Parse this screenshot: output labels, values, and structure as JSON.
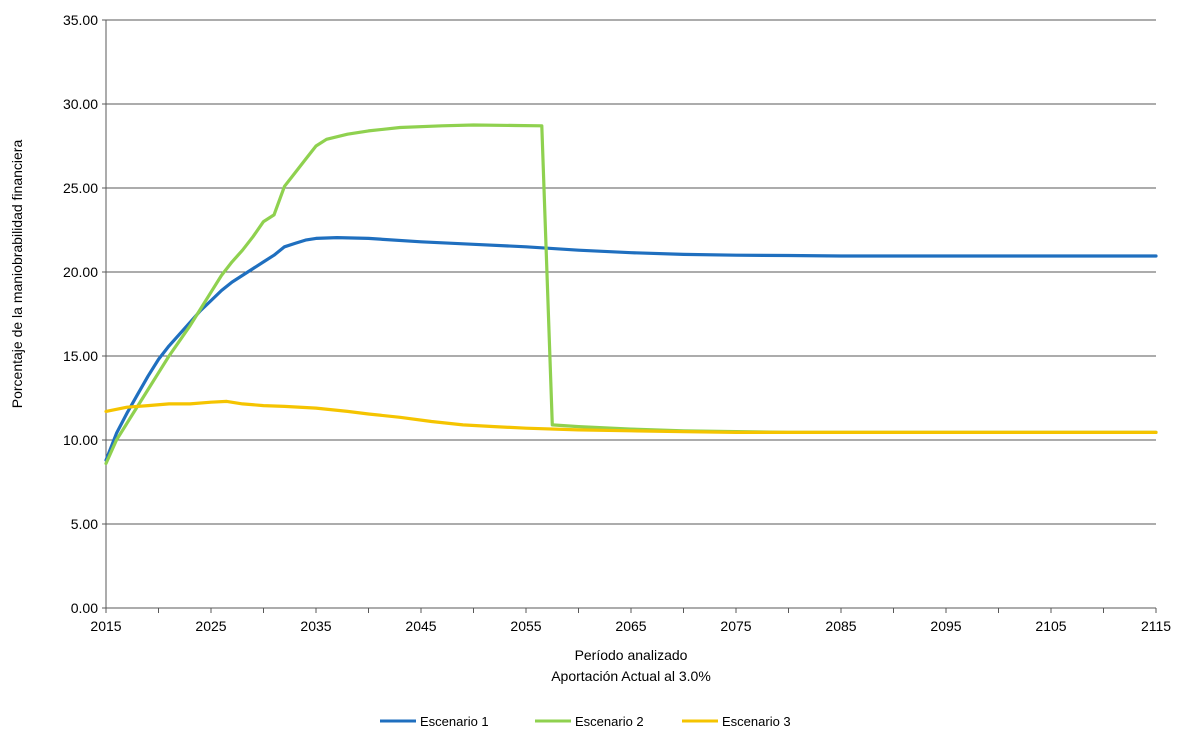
{
  "chart_data": {
    "type": "line",
    "title": "",
    "xlabel": "Período analizado",
    "xlabel2": "Aportación Actual al 3.0%",
    "ylabel": "Porcentaje de la maniobrabilidad financiera",
    "xlim": [
      2015,
      2115
    ],
    "ylim": [
      0,
      35
    ],
    "xticks": [
      "2015",
      "2025",
      "2035",
      "2045",
      "2055",
      "2065",
      "2075",
      "2085",
      "2095",
      "2105",
      "2115"
    ],
    "yticks": [
      "0.00",
      "5.00",
      "10.00",
      "15.00",
      "20.00",
      "25.00",
      "30.00",
      "35.00"
    ],
    "grid": "horizontal",
    "legend_position": "bottom",
    "series": [
      {
        "name": "Escenario 1",
        "color": "#1f6fbf",
        "points": [
          [
            2015,
            8.8
          ],
          [
            2016,
            10.4
          ],
          [
            2017,
            11.6
          ],
          [
            2018,
            12.7
          ],
          [
            2019,
            13.8
          ],
          [
            2020,
            14.8
          ],
          [
            2021,
            15.6
          ],
          [
            2022,
            16.3
          ],
          [
            2023,
            17.0
          ],
          [
            2024,
            17.7
          ],
          [
            2025,
            18.3
          ],
          [
            2026,
            18.9
          ],
          [
            2027,
            19.4
          ],
          [
            2028,
            19.8
          ],
          [
            2029,
            20.2
          ],
          [
            2030,
            20.6
          ],
          [
            2031,
            21.0
          ],
          [
            2032,
            21.5
          ],
          [
            2033,
            21.7
          ],
          [
            2034,
            21.9
          ],
          [
            2035,
            22.0
          ],
          [
            2037,
            22.05
          ],
          [
            2040,
            22.0
          ],
          [
            2045,
            21.8
          ],
          [
            2050,
            21.65
          ],
          [
            2055,
            21.5
          ],
          [
            2060,
            21.3
          ],
          [
            2065,
            21.15
          ],
          [
            2070,
            21.05
          ],
          [
            2075,
            21.0
          ],
          [
            2080,
            20.98
          ],
          [
            2085,
            20.95
          ],
          [
            2090,
            20.95
          ],
          [
            2100,
            20.95
          ],
          [
            2115,
            20.95
          ]
        ]
      },
      {
        "name": "Escenario 2",
        "color": "#8fd14f",
        "points": [
          [
            2015,
            8.6
          ],
          [
            2016,
            10.0
          ],
          [
            2017,
            11.0
          ],
          [
            2018,
            12.0
          ],
          [
            2019,
            13.0
          ],
          [
            2020,
            14.0
          ],
          [
            2021,
            15.0
          ],
          [
            2022,
            15.9
          ],
          [
            2023,
            16.8
          ],
          [
            2024,
            17.8
          ],
          [
            2025,
            18.8
          ],
          [
            2026,
            19.8
          ],
          [
            2027,
            20.6
          ],
          [
            2028,
            21.3
          ],
          [
            2029,
            22.1
          ],
          [
            2030,
            23.0
          ],
          [
            2031,
            23.4
          ],
          [
            2032,
            25.1
          ],
          [
            2033,
            25.9
          ],
          [
            2034,
            26.7
          ],
          [
            2035,
            27.5
          ],
          [
            2036,
            27.9
          ],
          [
            2038,
            28.2
          ],
          [
            2040,
            28.4
          ],
          [
            2043,
            28.6
          ],
          [
            2047,
            28.7
          ],
          [
            2050,
            28.75
          ],
          [
            2054,
            28.72
          ],
          [
            2056.5,
            28.7
          ],
          [
            2057.5,
            10.9
          ],
          [
            2060,
            10.8
          ],
          [
            2065,
            10.65
          ],
          [
            2070,
            10.55
          ],
          [
            2075,
            10.5
          ],
          [
            2080,
            10.45
          ],
          [
            2090,
            10.45
          ],
          [
            2100,
            10.45
          ],
          [
            2115,
            10.45
          ]
        ]
      },
      {
        "name": "Escenario 3",
        "color": "#f5c400",
        "points": [
          [
            2015,
            11.7
          ],
          [
            2017,
            11.95
          ],
          [
            2019,
            12.05
          ],
          [
            2021,
            12.15
          ],
          [
            2023,
            12.15
          ],
          [
            2025,
            12.25
          ],
          [
            2026.5,
            12.3
          ],
          [
            2028,
            12.15
          ],
          [
            2030,
            12.05
          ],
          [
            2032,
            12.0
          ],
          [
            2035,
            11.9
          ],
          [
            2038,
            11.7
          ],
          [
            2040,
            11.55
          ],
          [
            2043,
            11.35
          ],
          [
            2046,
            11.1
          ],
          [
            2049,
            10.9
          ],
          [
            2052,
            10.8
          ],
          [
            2055,
            10.7
          ],
          [
            2060,
            10.6
          ],
          [
            2065,
            10.55
          ],
          [
            2070,
            10.5
          ],
          [
            2075,
            10.45
          ],
          [
            2080,
            10.45
          ],
          [
            2090,
            10.45
          ],
          [
            2100,
            10.45
          ],
          [
            2115,
            10.45
          ]
        ]
      }
    ]
  }
}
